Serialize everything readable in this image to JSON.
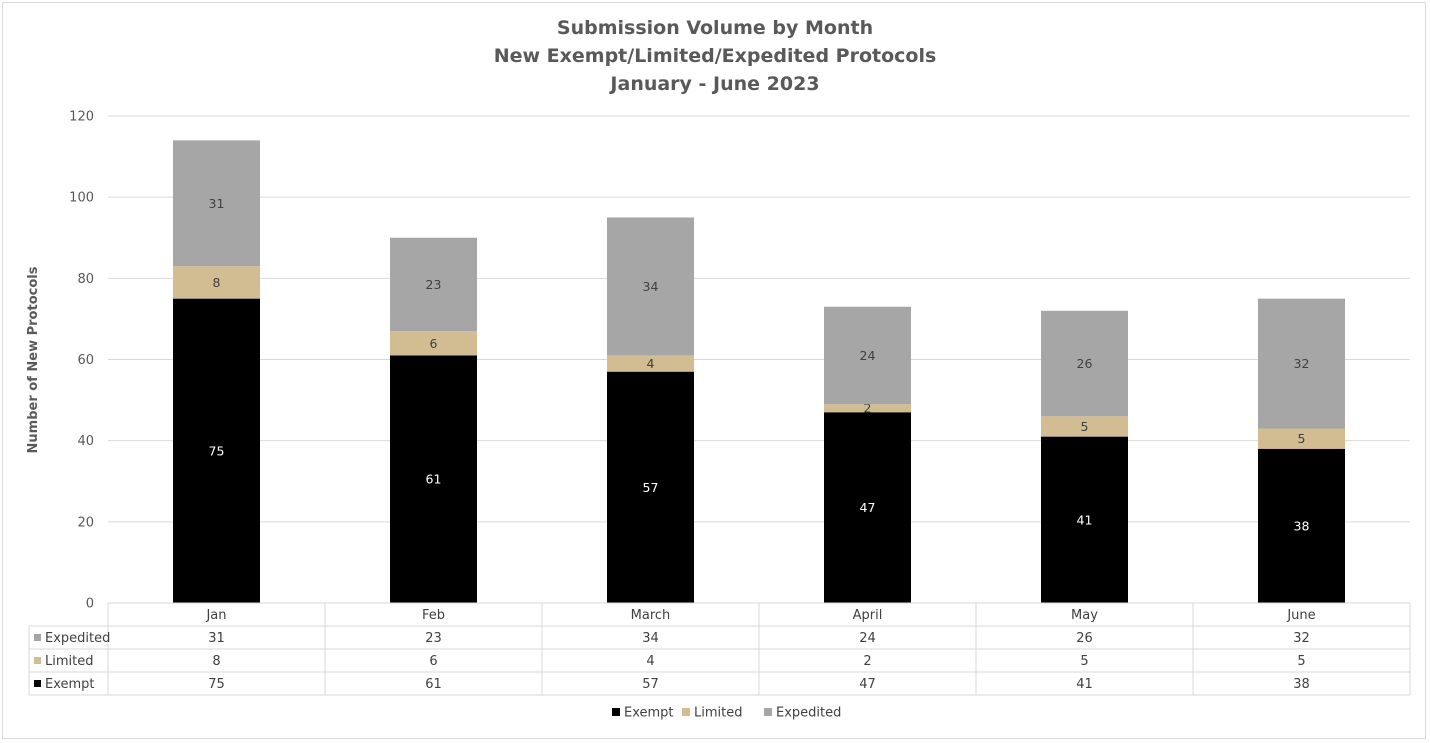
{
  "chart_data": {
    "type": "bar",
    "stacked": true,
    "title_lines": [
      "Submission Volume by Month",
      "New Exempt/Limited/Expedited Protocols",
      "January - June 2023"
    ],
    "ylabel": "Number of New Protocols",
    "ylim": [
      0,
      120
    ],
    "yticks": [
      "0",
      "20",
      "40",
      "60",
      "80",
      "100",
      "120"
    ],
    "grid": true,
    "categories": [
      "Jan",
      "Feb",
      "March",
      "April",
      "May",
      "June"
    ],
    "series": [
      {
        "name": "Exempt",
        "color": "#000000",
        "label_color": "#ffffff",
        "values": [
          75,
          61,
          57,
          47,
          41,
          38
        ]
      },
      {
        "name": "Limited",
        "color": "#d2bc92",
        "label_color": "#404040",
        "values": [
          8,
          6,
          4,
          2,
          5,
          5
        ]
      },
      {
        "name": "Expedited",
        "color": "#a6a6a6",
        "label_color": "#404040",
        "values": [
          31,
          23,
          34,
          24,
          26,
          32
        ]
      }
    ],
    "data_table": true,
    "legend_position": "bottom"
  }
}
